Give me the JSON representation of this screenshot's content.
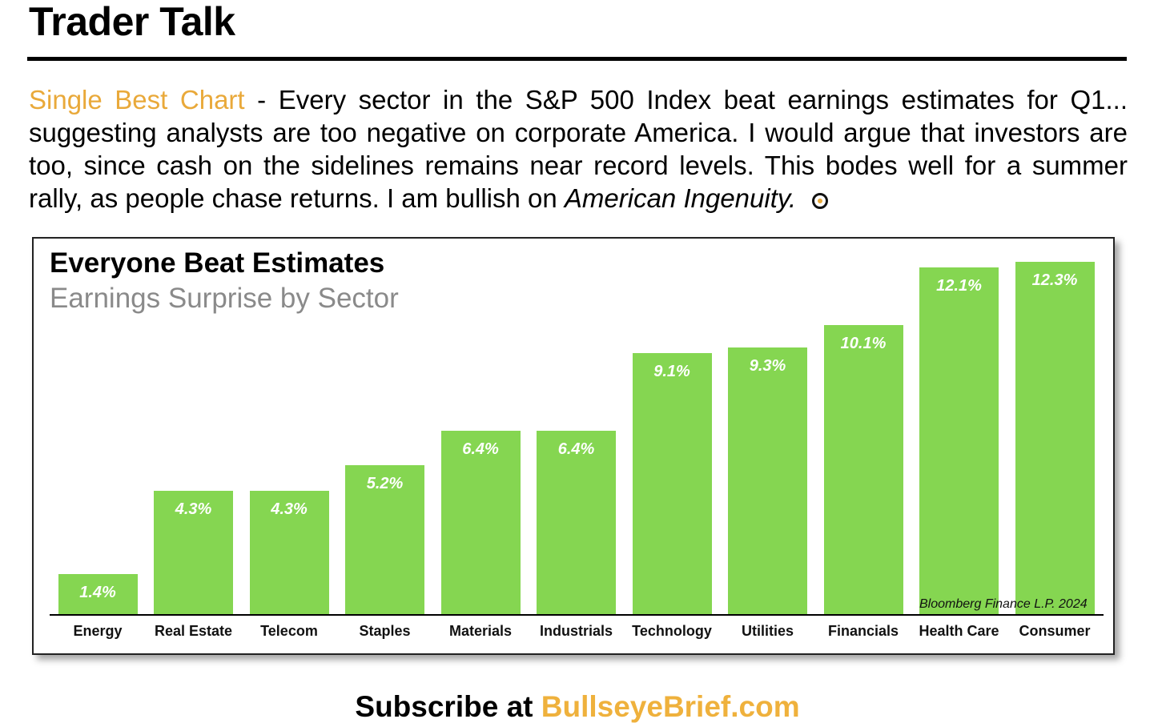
{
  "header": {
    "title": "Trader Talk"
  },
  "commentary": {
    "lead": "Single Best Chart",
    "body": " - Every sector in the S&P 500 Index beat earnings estimates for Q1... suggesting analysts are too negative on corporate America. I would argue that investors are too, since cash on the sidelines remains near record levels. This bodes well for a summer rally, as people chase returns. I am bullish on ",
    "emphasis": "American Ingenuity.",
    "icon": "bullseye-icon"
  },
  "chart_data": {
    "type": "bar",
    "title": "Everyone Beat Estimates",
    "subtitle": "Earnings Surprise by Sector",
    "categories": [
      "Energy",
      "Real Estate",
      "Telecom",
      "Staples",
      "Materials",
      "Industrials",
      "Technology",
      "Utilities",
      "Financials",
      "Health Care",
      "Consumer"
    ],
    "values": [
      1.4,
      4.3,
      4.3,
      5.2,
      6.4,
      6.4,
      9.1,
      9.3,
      10.1,
      12.1,
      12.3
    ],
    "value_labels": [
      "1.4%",
      "4.3%",
      "4.3%",
      "5.2%",
      "6.4%",
      "6.4%",
      "9.1%",
      "9.3%",
      "10.1%",
      "12.1%",
      "12.3%"
    ],
    "ylim": [
      0,
      12.3
    ],
    "grid": false,
    "bar_color": "#85d651",
    "source": "Bloomberg Finance L.P. 2024"
  },
  "footer": {
    "prefix": "Subscribe at ",
    "site": "BullseyeBrief.com",
    "accent_color": "#efb13c"
  }
}
